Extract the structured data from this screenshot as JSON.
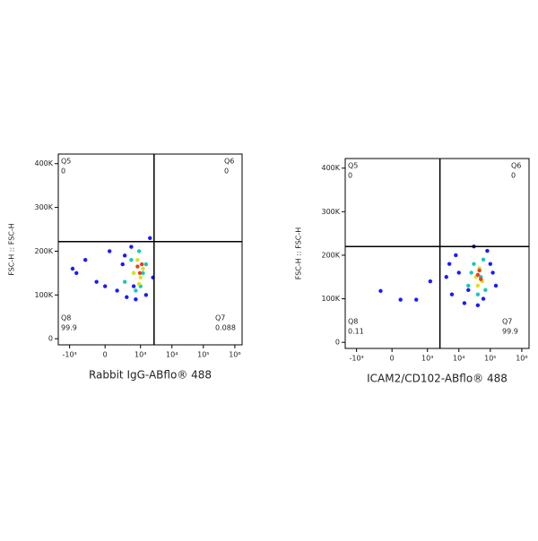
{
  "chart_data": [
    {
      "type": "scatter",
      "x_label": "Rabbit IgG-ABflo® 488",
      "y_label": "FSC-H :: FSC-H",
      "xscale": "biexponential",
      "xlim": [
        -2300,
        1700000
      ],
      "ylim": [
        -14000,
        422000
      ],
      "xticks": [
        {
          "value": -1000,
          "label": "-10³"
        },
        0,
        {
          "value": 1000,
          "label": "10³"
        },
        {
          "value": 10000,
          "label": "10⁴"
        },
        {
          "value": 100000,
          "label": "10⁵"
        },
        {
          "value": 1000000,
          "label": "10⁶"
        }
      ],
      "yticks": [
        0,
        {
          "value": 100000,
          "label": "100K"
        },
        {
          "value": 200000,
          "label": "200K"
        },
        {
          "value": 300000,
          "label": "300K"
        },
        {
          "value": 400000,
          "label": "400K"
        }
      ],
      "gate": {
        "x": 2700,
        "y": 222000
      },
      "quadrants": [
        {
          "name": "Q5",
          "value": 0
        },
        {
          "name": "Q6",
          "value": 0
        },
        {
          "name": "Q8",
          "value": 99.9
        },
        {
          "name": "Q7",
          "value": 0.088
        }
      ],
      "layers": [
        {
          "color": "#1a1aff",
          "x": [
            -600,
            -300,
            -100,
            50,
            150,
            250,
            350,
            500,
            600,
            1500,
            2000,
            2500,
            -800,
            0,
            300,
            700
          ],
          "y": [
            150000,
            180000,
            130000,
            200000,
            110000,
            170000,
            95000,
            210000,
            120000,
            100000,
            230000,
            140000,
            160000,
            120000,
            190000,
            90000
          ]
        },
        {
          "color": "#19c8b4",
          "x": [
            300,
            500,
            700,
            900,
            1200,
            1500,
            600,
            1000
          ],
          "y": [
            130000,
            180000,
            110000,
            200000,
            150000,
            170000,
            150000,
            120000
          ]
        },
        {
          "color": "#d8e020",
          "x": [
            600,
            800,
            1000,
            1200,
            900
          ],
          "y": [
            150000,
            180000,
            140000,
            160000,
            125000
          ]
        },
        {
          "color": "#e8401c",
          "x": [
            800,
            950,
            1100
          ],
          "y": [
            165000,
            150000,
            170000
          ]
        }
      ]
    },
    {
      "type": "scatter",
      "x_label": "ICAM2/CD102-ABflo® 488",
      "y_label": "FSC-H :: FSC-H",
      "xscale": "biexponential",
      "xlim": [
        -2300,
        1700000
      ],
      "ylim": [
        -14000,
        422000
      ],
      "xticks": [
        {
          "value": -1000,
          "label": "-10³"
        },
        0,
        {
          "value": 1000,
          "label": "10³"
        },
        {
          "value": 10000,
          "label": "10⁴"
        },
        {
          "value": 100000,
          "label": "10⁵"
        },
        {
          "value": 1000000,
          "label": "10⁶"
        }
      ],
      "yticks": [
        0,
        {
          "value": 100000,
          "label": "100K"
        },
        {
          "value": 200000,
          "label": "200K"
        },
        {
          "value": 300000,
          "label": "300K"
        },
        {
          "value": 400000,
          "label": "400K"
        }
      ],
      "gate": {
        "x": 2500,
        "y": 220000
      },
      "quadrants": [
        {
          "name": "Q5",
          "value": 0
        },
        {
          "name": "Q6",
          "value": 0
        },
        {
          "name": "Q8",
          "value": 0.11
        },
        {
          "name": "Q7",
          "value": 99.9
        }
      ],
      "layers": [
        {
          "color": "#1a1aff",
          "x": [
            4000,
            6000,
            8000,
            15000,
            30000,
            60000,
            100000,
            150000,
            5000,
            20000,
            80000,
            120000,
            10000,
            40000,
            -140,
            100,
            430,
            1230
          ],
          "y": [
            150000,
            110000,
            200000,
            90000,
            220000,
            100000,
            180000,
            130000,
            180000,
            120000,
            210000,
            160000,
            160000,
            85000,
            118000,
            98000,
            98000,
            140000
          ]
        },
        {
          "color": "#19c8b4",
          "x": [
            20000,
            30000,
            50000,
            70000,
            25000,
            40000,
            60000
          ],
          "y": [
            130000,
            180000,
            150000,
            120000,
            160000,
            110000,
            190000
          ]
        },
        {
          "color": "#d8e020",
          "x": [
            35000,
            45000,
            55000,
            40000
          ],
          "y": [
            150000,
            170000,
            140000,
            130000
          ]
        },
        {
          "color": "#e8401c",
          "x": [
            40000,
            50000,
            45000
          ],
          "y": [
            155000,
            145000,
            165000
          ]
        }
      ]
    }
  ]
}
